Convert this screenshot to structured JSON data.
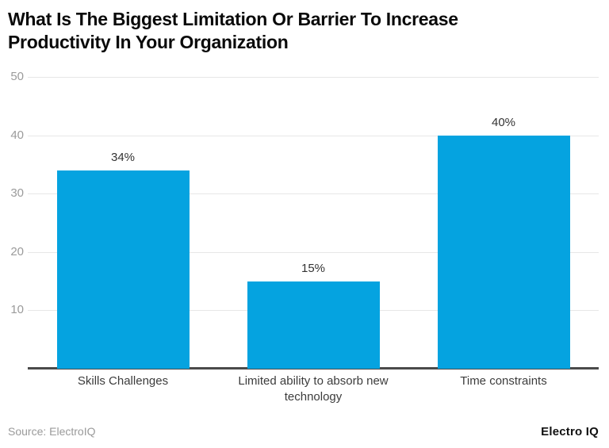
{
  "header": {
    "title": "What Is The Biggest Limitation Or Barrier To Increase Productivity In Your Organization",
    "title_lines": [
      "What Is The Biggest Limitation Or Barrier To Increase",
      "Productivity In Your Organization"
    ]
  },
  "chart_data": {
    "type": "bar",
    "title": "What Is The Biggest Limitation Or Barrier To Increase Productivity In Your Organization",
    "categories": [
      "Skills Challenges",
      "Limited ability to absorb new technology",
      "Time constraints"
    ],
    "values": [
      34,
      15,
      40
    ],
    "value_labels": [
      "34%",
      "15%",
      "40%"
    ],
    "xlabel": "",
    "ylabel": "",
    "ylim": [
      0,
      50
    ],
    "yticks": [
      10,
      20,
      30,
      40,
      50
    ],
    "grid": true,
    "legend": "none",
    "bar_color": "#05a3e0"
  },
  "footer": {
    "source": "Source: ElectroIQ",
    "brand": "Electro IQ"
  },
  "colors": {
    "bar": "#05a3e0",
    "gridline": "#e7e7e7",
    "axis": "#4a4a4a",
    "tick_label": "#9b9b9b",
    "value_label": "#333333",
    "category_label": "#3c3c3c",
    "title": "#0a0a0a",
    "source": "#9a9a9a",
    "brand": "#111111"
  }
}
